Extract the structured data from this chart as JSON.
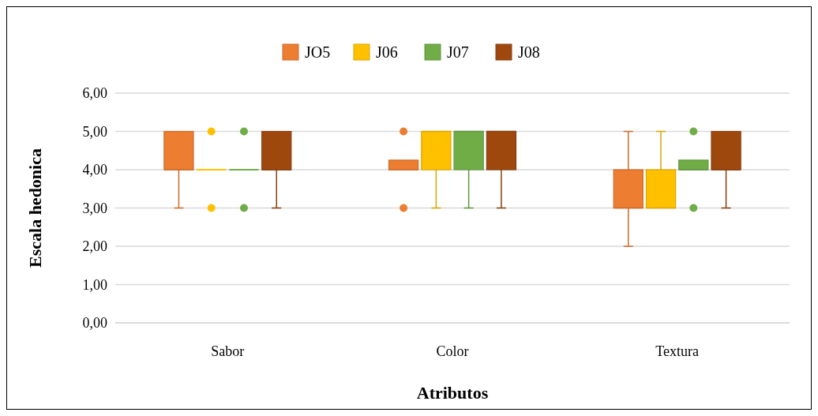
{
  "chart_data": {
    "type": "box",
    "xlabel": "Atributos",
    "ylabel": "Escala hedonica",
    "categories": [
      "Sabor",
      "Color",
      "Textura"
    ],
    "ylim": [
      0,
      6
    ],
    "yticks": [
      {
        "value": 0,
        "label": "0,00"
      },
      {
        "value": 1,
        "label": "1,00"
      },
      {
        "value": 2,
        "label": "2,00"
      },
      {
        "value": 3,
        "label": "3,00"
      },
      {
        "value": 4,
        "label": "4,00"
      },
      {
        "value": 5,
        "label": "5,00"
      },
      {
        "value": 6,
        "label": "6,00"
      }
    ],
    "grid": "y",
    "legend": "top",
    "series": [
      {
        "name": "JO5",
        "color": "#ed7d31",
        "boxes": [
          {
            "low": 3,
            "q1": 4,
            "median": 4,
            "q3": 5,
            "high": 5
          },
          {
            "low": 4,
            "q1": 4,
            "median": 4,
            "q3": 4.25,
            "high": 4.25,
            "outliers": [
              5,
              3
            ]
          },
          {
            "low": 2,
            "q1": 3,
            "median": 3,
            "q3": 4,
            "high": 5
          }
        ]
      },
      {
        "name": "J06",
        "color": "#ffc000",
        "boxes": [
          {
            "low": 4,
            "q1": 4,
            "median": 4,
            "q3": 4,
            "high": 4,
            "outliers": [
              5,
              3
            ]
          },
          {
            "low": 3,
            "q1": 4,
            "median": 5,
            "q3": 5,
            "high": 5
          },
          {
            "low": 3,
            "q1": 3,
            "median": 3,
            "q3": 4,
            "high": 5
          }
        ]
      },
      {
        "name": "J07",
        "color": "#70ad47",
        "boxes": [
          {
            "low": 4,
            "q1": 4,
            "median": 4,
            "q3": 4,
            "high": 4,
            "outliers": [
              5,
              3
            ]
          },
          {
            "low": 3,
            "q1": 4,
            "median": 5,
            "q3": 5,
            "high": 5
          },
          {
            "low": 4,
            "q1": 4,
            "median": 4,
            "q3": 4.25,
            "high": 4.25,
            "outliers": [
              5,
              3
            ]
          }
        ]
      },
      {
        "name": "J08",
        "color": "#9e480e",
        "boxes": [
          {
            "low": 3,
            "q1": 4,
            "median": 4,
            "q3": 5,
            "high": 5
          },
          {
            "low": 3,
            "q1": 4,
            "median": 5,
            "q3": 5,
            "high": 5
          },
          {
            "low": 3,
            "q1": 4,
            "median": 4,
            "q3": 5,
            "high": 5
          }
        ]
      }
    ]
  }
}
